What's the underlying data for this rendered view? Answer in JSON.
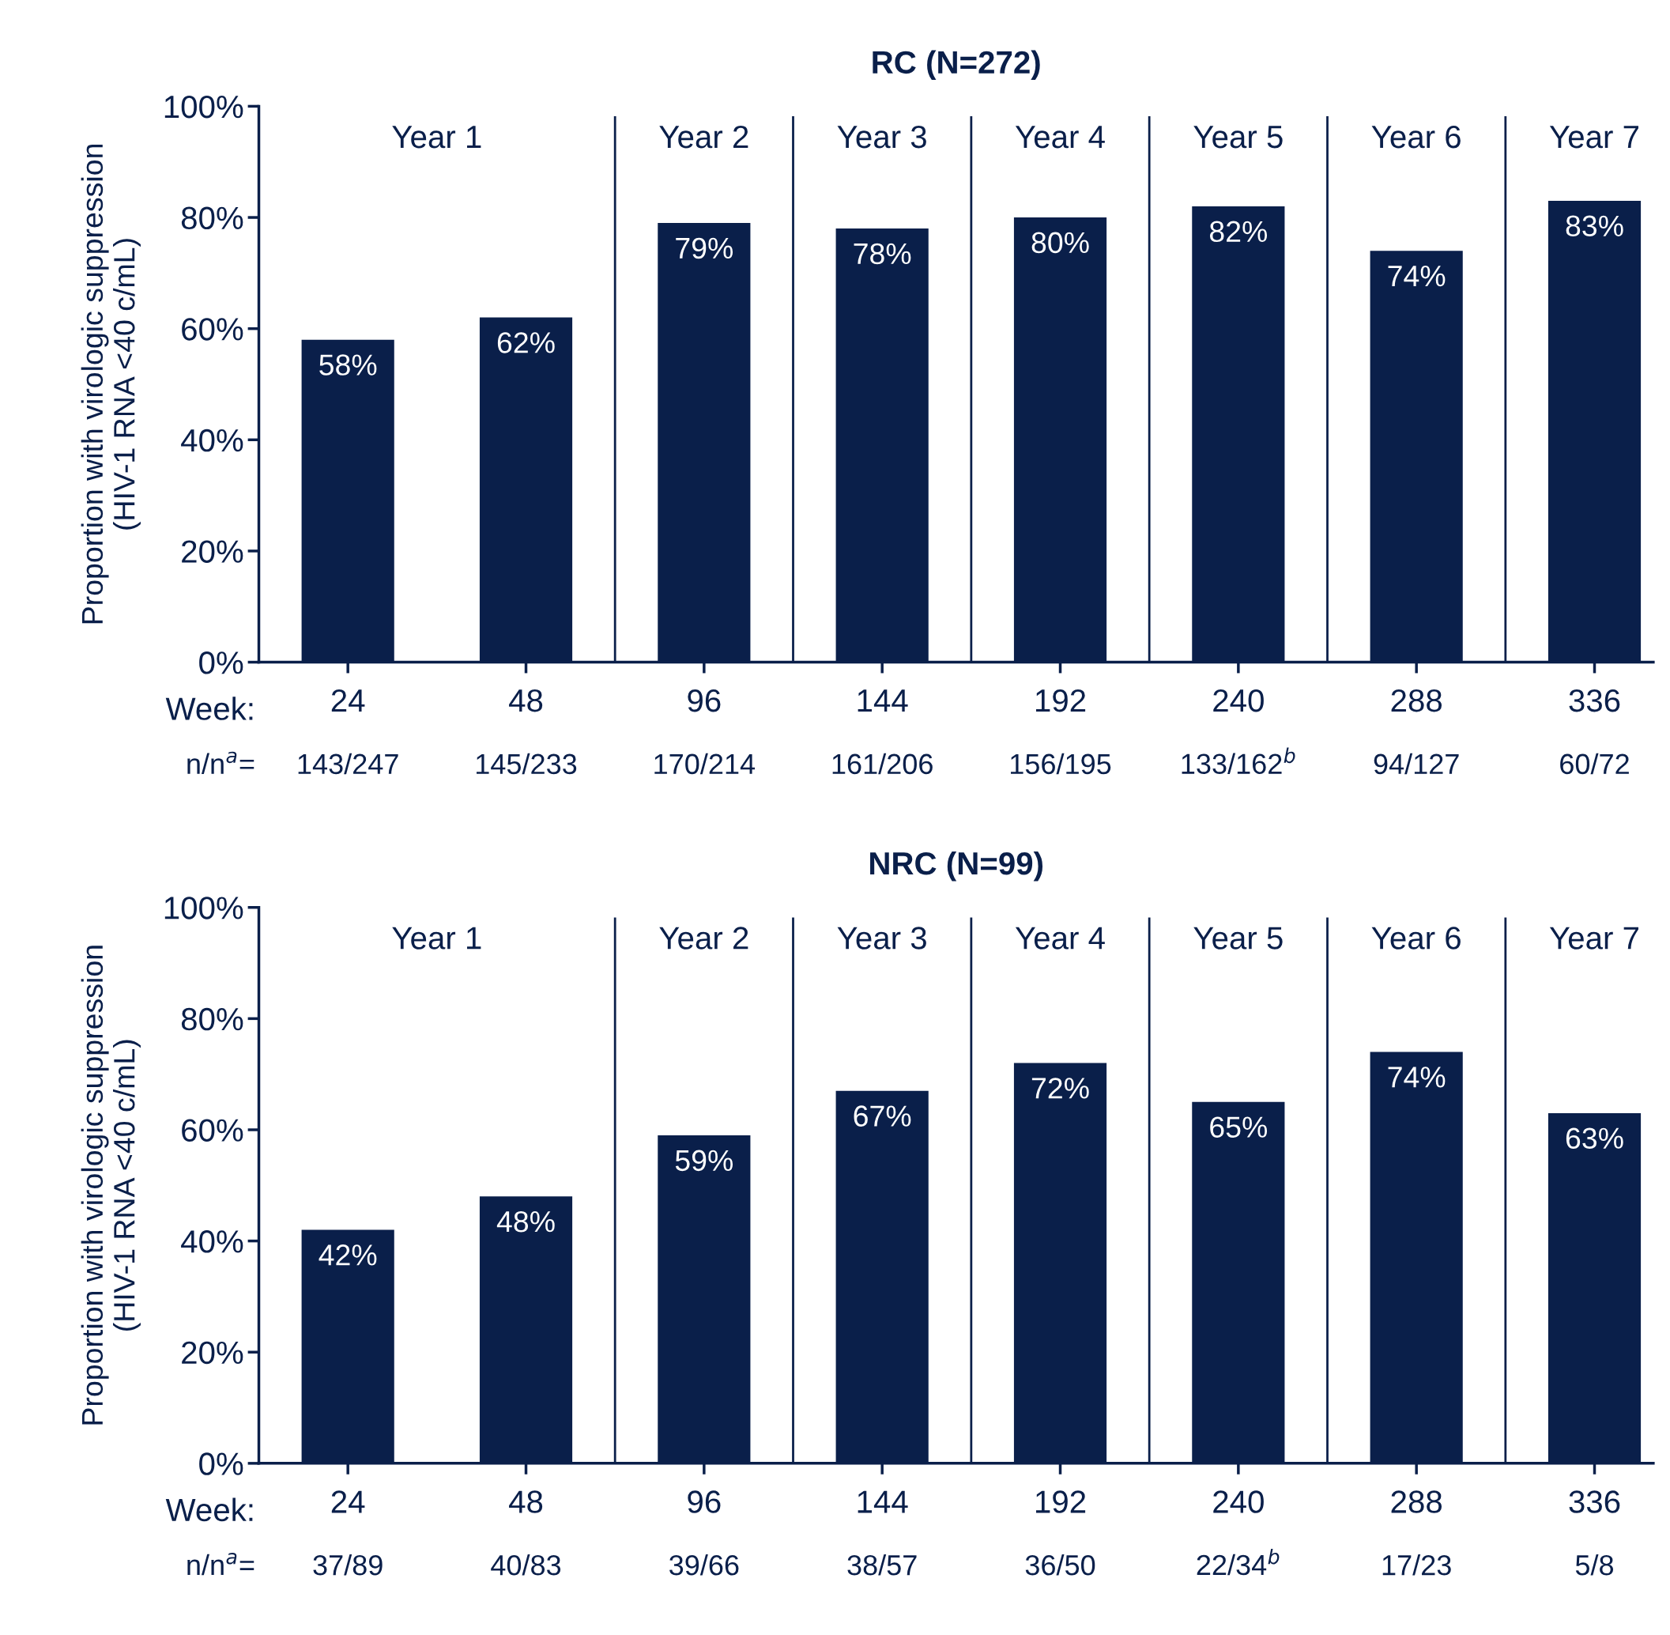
{
  "chart_data": [
    {
      "type": "bar",
      "title": "RC (N=272)",
      "ylabel": "Proportion with virologic suppression\n(HIV-1 RNA <40 c/mL)",
      "categories": [
        "24",
        "48",
        "96",
        "144",
        "192",
        "240",
        "288",
        "336"
      ],
      "values": [
        58,
        62,
        79,
        78,
        80,
        82,
        74,
        83
      ],
      "value_labels": [
        "58%",
        "62%",
        "79%",
        "78%",
        "80%",
        "82%",
        "74%",
        "83%"
      ],
      "color": "#0a1f4a",
      "ylim": [
        0,
        100
      ],
      "yticks": [
        {
          "value": 0,
          "label": "0%"
        },
        {
          "value": 20,
          "label": "20%"
        },
        {
          "value": 40,
          "label": "40%"
        },
        {
          "value": 60,
          "label": "60%"
        },
        {
          "value": 80,
          "label": "80%"
        },
        {
          "value": 100,
          "label": "100%"
        }
      ],
      "grid": false,
      "annotations": [
        "Week:",
        "n/n$^{a}$=",
        "143/247",
        "145/233",
        "170/214",
        "161/206",
        "156/195",
        "133/162$^{b}$",
        "94/127",
        "60/72",
        "Year 1",
        "Year 2",
        "Year 3",
        "Year 4",
        "Year 5",
        "Year 6",
        "Year 7"
      ]
    },
    {
      "type": "bar",
      "title": "NRC (N=99)",
      "ylabel": "Proportion with virologic suppression\n(HIV-1 RNA <40 c/mL)",
      "categories": [
        "24",
        "48",
        "96",
        "144",
        "192",
        "240",
        "288",
        "336"
      ],
      "values": [
        42,
        48,
        59,
        67,
        72,
        65,
        74,
        63
      ],
      "value_labels": [
        "42%",
        "48%",
        "59%",
        "67%",
        "72%",
        "65%",
        "74%",
        "63%"
      ],
      "color": "#0a1f4a",
      "ylim": [
        0,
        100
      ],
      "yticks": [
        {
          "value": 0,
          "label": "0%"
        },
        {
          "value": 20,
          "label": "20%"
        },
        {
          "value": 40,
          "label": "40%"
        },
        {
          "value": 60,
          "label": "60%"
        },
        {
          "value": 80,
          "label": "80%"
        },
        {
          "value": 100,
          "label": "100%"
        }
      ],
      "grid": false,
      "annotations": [
        "Week:",
        "n/n$^{a}$=",
        "37/89",
        "40/83",
        "39/66",
        "38/57",
        "36/50",
        "22/34$^{b}$",
        "17/23",
        "5/8",
        "Year 1",
        "Year 2",
        "Year 3",
        "Year 4",
        "Year 5",
        "Year 6",
        "Year 7"
      ]
    }
  ]
}
